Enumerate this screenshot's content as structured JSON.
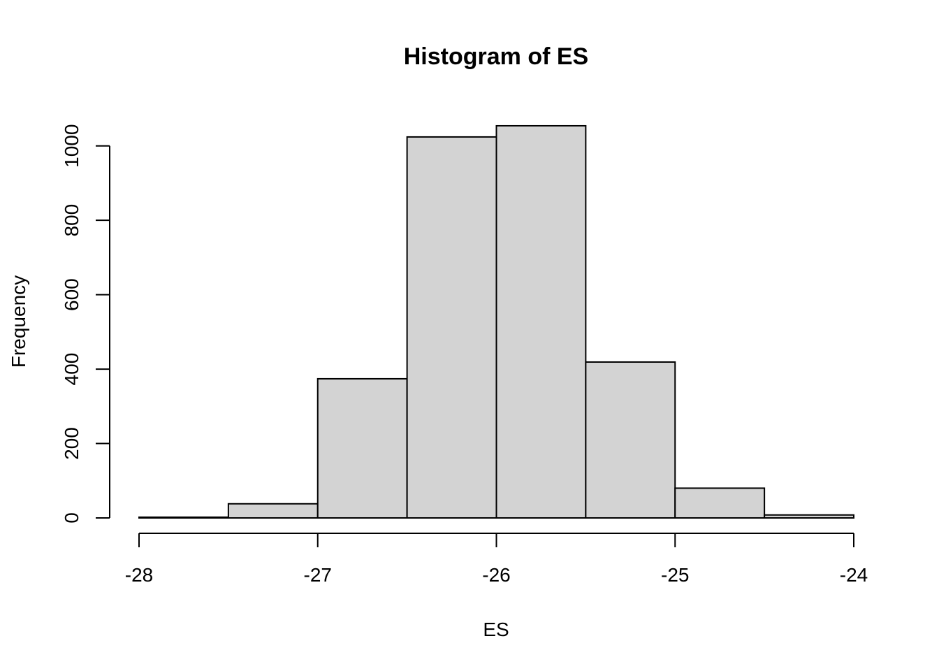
{
  "chart_data": {
    "type": "bar",
    "title": "Histogram of ES",
    "xlabel": "ES",
    "ylabel": "Frequency",
    "bins": [
      {
        "from": -28.0,
        "to": -27.5,
        "count": 2
      },
      {
        "from": -27.5,
        "to": -27.0,
        "count": 38
      },
      {
        "from": -27.0,
        "to": -26.5,
        "count": 374
      },
      {
        "from": -26.5,
        "to": -26.0,
        "count": 1024
      },
      {
        "from": -26.0,
        "to": -25.5,
        "count": 1054
      },
      {
        "from": -25.5,
        "to": -25.0,
        "count": 419
      },
      {
        "from": -25.0,
        "to": -24.5,
        "count": 80
      },
      {
        "from": -24.5,
        "to": -24.0,
        "count": 8
      }
    ],
    "xlim": [
      -28,
      -24
    ],
    "ylim": [
      0,
      1054
    ],
    "x_ticks": [
      -28,
      -27,
      -26,
      -25,
      -24
    ],
    "x_tick_labels": [
      "-28",
      "-27",
      "-26",
      "-25",
      "-24"
    ],
    "y_ticks": [
      0,
      200,
      400,
      600,
      800,
      1000
    ],
    "y_tick_labels": [
      "0",
      "200",
      "400",
      "600",
      "800",
      "1000"
    ],
    "grid": false,
    "colors": {
      "bar_fill": "#d3d3d3",
      "bar_stroke": "#000000"
    }
  }
}
